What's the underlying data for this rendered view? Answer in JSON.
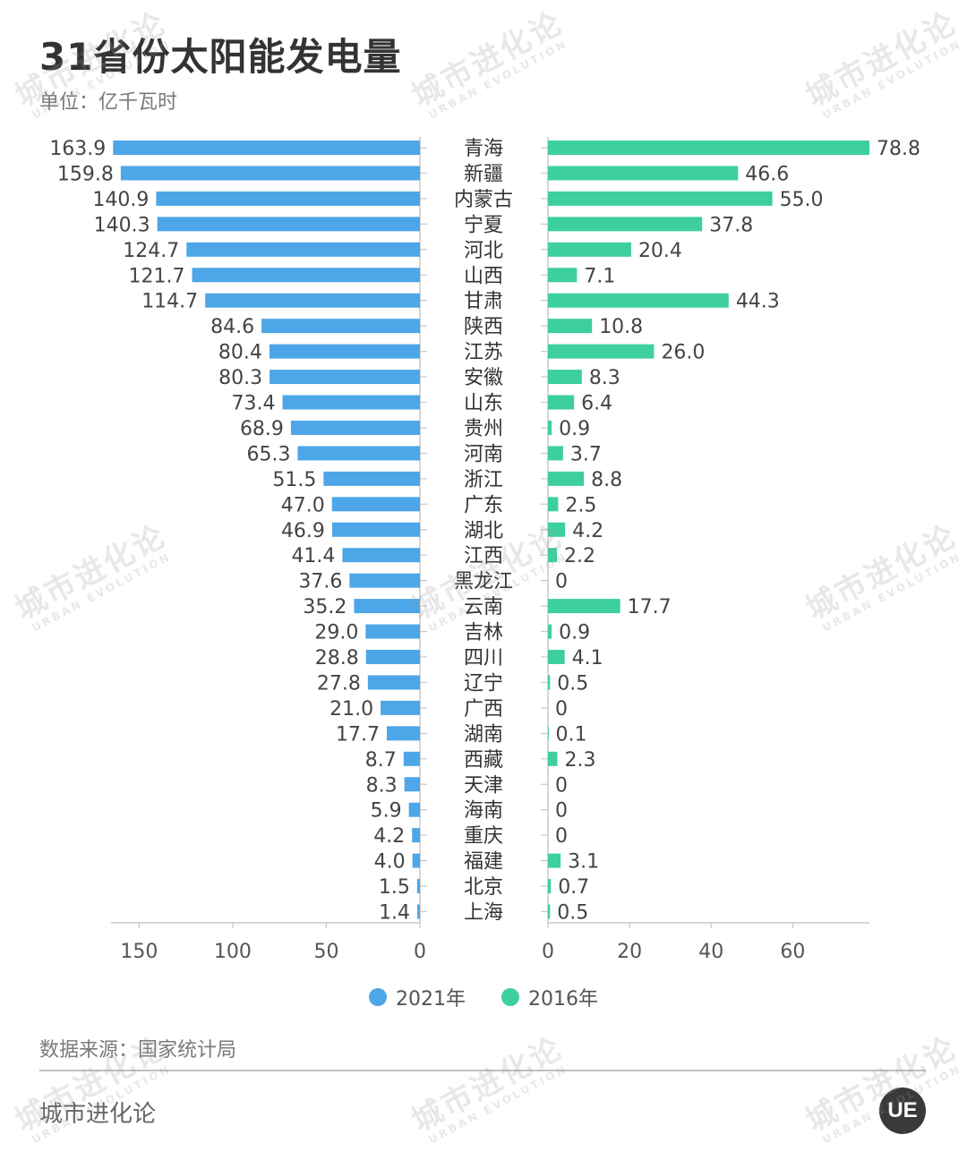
{
  "page": {
    "title": "31省份太阳能发电量",
    "unit": "单位：亿千瓦时",
    "source": "数据来源：国家统计局",
    "brand": "城市进化论",
    "logo_text": "UE",
    "watermark_cn": "城市进化论",
    "watermark_en": "URBAN EVOLUTION"
  },
  "chart_data": {
    "type": "bar",
    "orientation": "horizontal-butterfly",
    "title": "31省份太阳能发电量",
    "unit": "亿千瓦时",
    "categories": [
      "青海",
      "新疆",
      "内蒙古",
      "宁夏",
      "河北",
      "山西",
      "甘肃",
      "陕西",
      "江苏",
      "安徽",
      "山东",
      "贵州",
      "河南",
      "浙江",
      "广东",
      "湖北",
      "江西",
      "黑龙江",
      "云南",
      "吉林",
      "四川",
      "辽宁",
      "广西",
      "湖南",
      "西藏",
      "天津",
      "海南",
      "重庆",
      "福建",
      "北京",
      "上海"
    ],
    "series": [
      {
        "name": "2021年",
        "color": "#4da6e8",
        "side": "left",
        "xlim": [
          0,
          165
        ],
        "ticks": [
          150,
          100,
          50,
          0
        ],
        "tick_labels": [
          "150",
          "100",
          "50",
          "0"
        ],
        "values": [
          163.9,
          159.8,
          140.9,
          140.3,
          124.7,
          121.7,
          114.7,
          84.6,
          80.4,
          80.3,
          73.4,
          68.9,
          65.3,
          51.5,
          47.0,
          46.9,
          41.4,
          37.6,
          35.2,
          29.0,
          28.8,
          27.8,
          21.0,
          17.7,
          8.7,
          8.3,
          5.9,
          4.2,
          4.0,
          1.5,
          1.4
        ],
        "labels": [
          "163.9",
          "159.8",
          "140.9",
          "140.3",
          "124.7",
          "121.7",
          "114.7",
          "84.6",
          "80.4",
          "80.3",
          "73.4",
          "68.9",
          "65.3",
          "51.5",
          "47.0",
          "46.9",
          "41.4",
          "37.6",
          "35.2",
          "29.0",
          "28.8",
          "27.8",
          "21.0",
          "17.7",
          "8.7",
          "8.3",
          "5.9",
          "4.2",
          "4.0",
          "1.5",
          "1.4"
        ]
      },
      {
        "name": "2016年",
        "color": "#3ecf9e",
        "side": "right",
        "xlim": [
          0,
          78.8
        ],
        "ticks": [
          0,
          20,
          40,
          60
        ],
        "tick_labels": [
          "0",
          "20",
          "40",
          "60"
        ],
        "values": [
          78.8,
          46.6,
          55.0,
          37.8,
          20.4,
          7.1,
          44.3,
          10.8,
          26.0,
          8.3,
          6.4,
          0.9,
          3.7,
          8.8,
          2.5,
          4.2,
          2.2,
          0,
          17.7,
          0.9,
          4.1,
          0.5,
          0,
          0.1,
          2.3,
          0,
          0,
          0,
          3.1,
          0.7,
          0.5
        ],
        "labels": [
          "78.8",
          "46.6",
          "55.0",
          "37.8",
          "20.4",
          "7.1",
          "44.3",
          "10.8",
          "26.0",
          "8.3",
          "6.4",
          "0.9",
          "3.7",
          "8.8",
          "2.5",
          "4.2",
          "2.2",
          "0",
          "17.7",
          "0.9",
          "4.1",
          "0.5",
          "0",
          "0.1",
          "2.3",
          "0",
          "0",
          "0",
          "3.1",
          "0.7",
          "0.5"
        ]
      }
    ],
    "legend": [
      "2021年",
      "2016年"
    ],
    "legend_position": "bottom-center",
    "grid": false
  }
}
